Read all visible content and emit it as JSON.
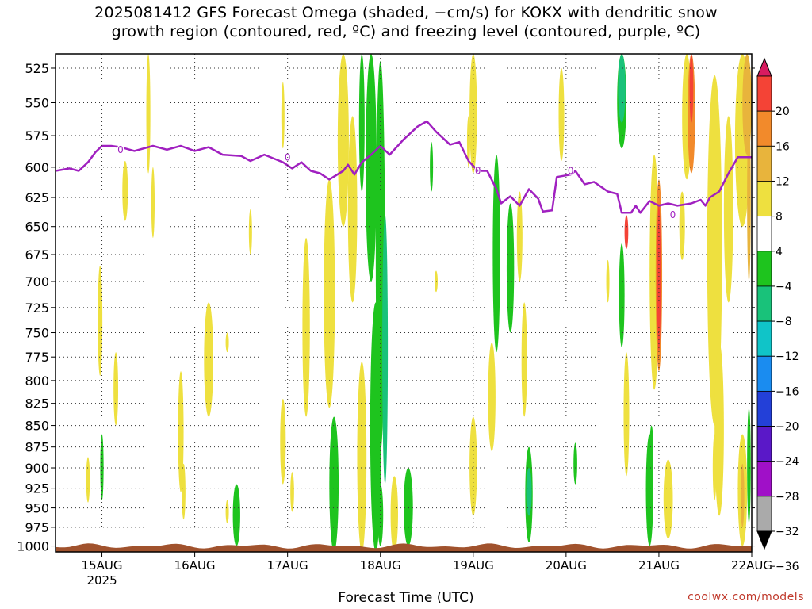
{
  "title": {
    "line1": "2025081412 GFS Forecast Omega (shaded, −cm/s) for KOKX with dendritic snow",
    "line2": "growth region (contoured, red, ºC) and freezing level (contoured, purple, ºC)"
  },
  "credit": "coolwx.com/models",
  "chart_data": {
    "type": "heatmap",
    "xlabel": "Forecast Time (UTC)",
    "x_ticks": [
      "15AUG",
      "16AUG",
      "17AUG",
      "18AUG",
      "19AUG",
      "20AUG",
      "21AUG",
      "22AUG"
    ],
    "x_sublabel": "2025",
    "x_range_days": [
      14.5,
      22.0
    ],
    "y_ticks": [
      525,
      550,
      575,
      600,
      625,
      650,
      675,
      700,
      725,
      750,
      775,
      800,
      825,
      850,
      875,
      900,
      925,
      950,
      975,
      1000
    ],
    "y_range_hpa": [
      515,
      1008
    ],
    "y_scale": "log",
    "grid": "dotted",
    "colorbar": {
      "labels": [
        "20",
        "16",
        "12",
        "8",
        "4",
        "−4",
        "−8",
        "−12",
        "−16",
        "−20",
        "−24",
        "−28",
        "−32",
        "−36"
      ],
      "colors": [
        "#d81b60",
        "#f44336",
        "#f28a2b",
        "#e8b43c",
        "#eee03f",
        "#ffffff",
        "#1ec41e",
        "#19c27a",
        "#10c4c8",
        "#1a8cf0",
        "#2340d8",
        "#5a18c8",
        "#a010c8",
        "#aaaaaa",
        "#000000"
      ]
    },
    "freezing_level": {
      "label": "0",
      "color": "#a020c0",
      "points": [
        [
          14.5,
          603
        ],
        [
          14.65,
          601
        ],
        [
          14.75,
          603
        ],
        [
          14.85,
          596
        ],
        [
          14.93,
          588
        ],
        [
          15.0,
          583
        ],
        [
          15.1,
          583
        ],
        [
          15.2,
          584
        ],
        [
          15.35,
          587
        ],
        [
          15.55,
          583
        ],
        [
          15.7,
          586
        ],
        [
          15.85,
          583
        ],
        [
          16.0,
          587
        ],
        [
          16.15,
          584
        ],
        [
          16.3,
          590
        ],
        [
          16.5,
          591
        ],
        [
          16.6,
          595
        ],
        [
          16.75,
          590
        ],
        [
          16.85,
          593
        ],
        [
          16.95,
          596
        ],
        [
          17.05,
          601
        ],
        [
          17.15,
          596
        ],
        [
          17.25,
          603
        ],
        [
          17.35,
          605
        ],
        [
          17.45,
          610
        ],
        [
          17.6,
          603
        ],
        [
          17.65,
          598
        ],
        [
          17.72,
          606
        ],
        [
          17.8,
          596
        ],
        [
          17.9,
          590
        ],
        [
          18.0,
          583
        ],
        [
          18.1,
          590
        ],
        [
          18.25,
          578
        ],
        [
          18.4,
          568
        ],
        [
          18.5,
          564
        ],
        [
          18.6,
          572
        ],
        [
          18.75,
          582
        ],
        [
          18.85,
          580
        ],
        [
          18.95,
          595
        ],
        [
          19.05,
          603
        ],
        [
          19.15,
          603
        ],
        [
          19.25,
          618
        ],
        [
          19.3,
          630
        ],
        [
          19.4,
          624
        ],
        [
          19.5,
          632
        ],
        [
          19.6,
          618
        ],
        [
          19.7,
          626
        ],
        [
          19.75,
          637
        ],
        [
          19.85,
          636
        ],
        [
          19.9,
          608
        ],
        [
          20.05,
          606
        ],
        [
          20.1,
          603
        ],
        [
          20.2,
          614
        ],
        [
          20.3,
          612
        ],
        [
          20.45,
          620
        ],
        [
          20.55,
          622
        ],
        [
          20.6,
          638
        ],
        [
          20.7,
          638
        ],
        [
          20.75,
          632
        ],
        [
          20.8,
          638
        ],
        [
          20.9,
          628
        ],
        [
          21.0,
          632
        ],
        [
          21.1,
          630
        ],
        [
          21.2,
          632
        ],
        [
          21.35,
          630
        ],
        [
          21.45,
          627
        ],
        [
          21.5,
          632
        ],
        [
          21.55,
          625
        ],
        [
          21.65,
          620
        ],
        [
          21.75,
          605
        ],
        [
          21.85,
          592
        ],
        [
          21.95,
          592
        ],
        [
          22.0,
          592
        ]
      ],
      "labels_at": [
        [
          15.2,
          586
        ],
        [
          17.0,
          592
        ],
        [
          19.05,
          603
        ],
        [
          20.05,
          603
        ],
        [
          21.15,
          640
        ]
      ]
    }
  }
}
